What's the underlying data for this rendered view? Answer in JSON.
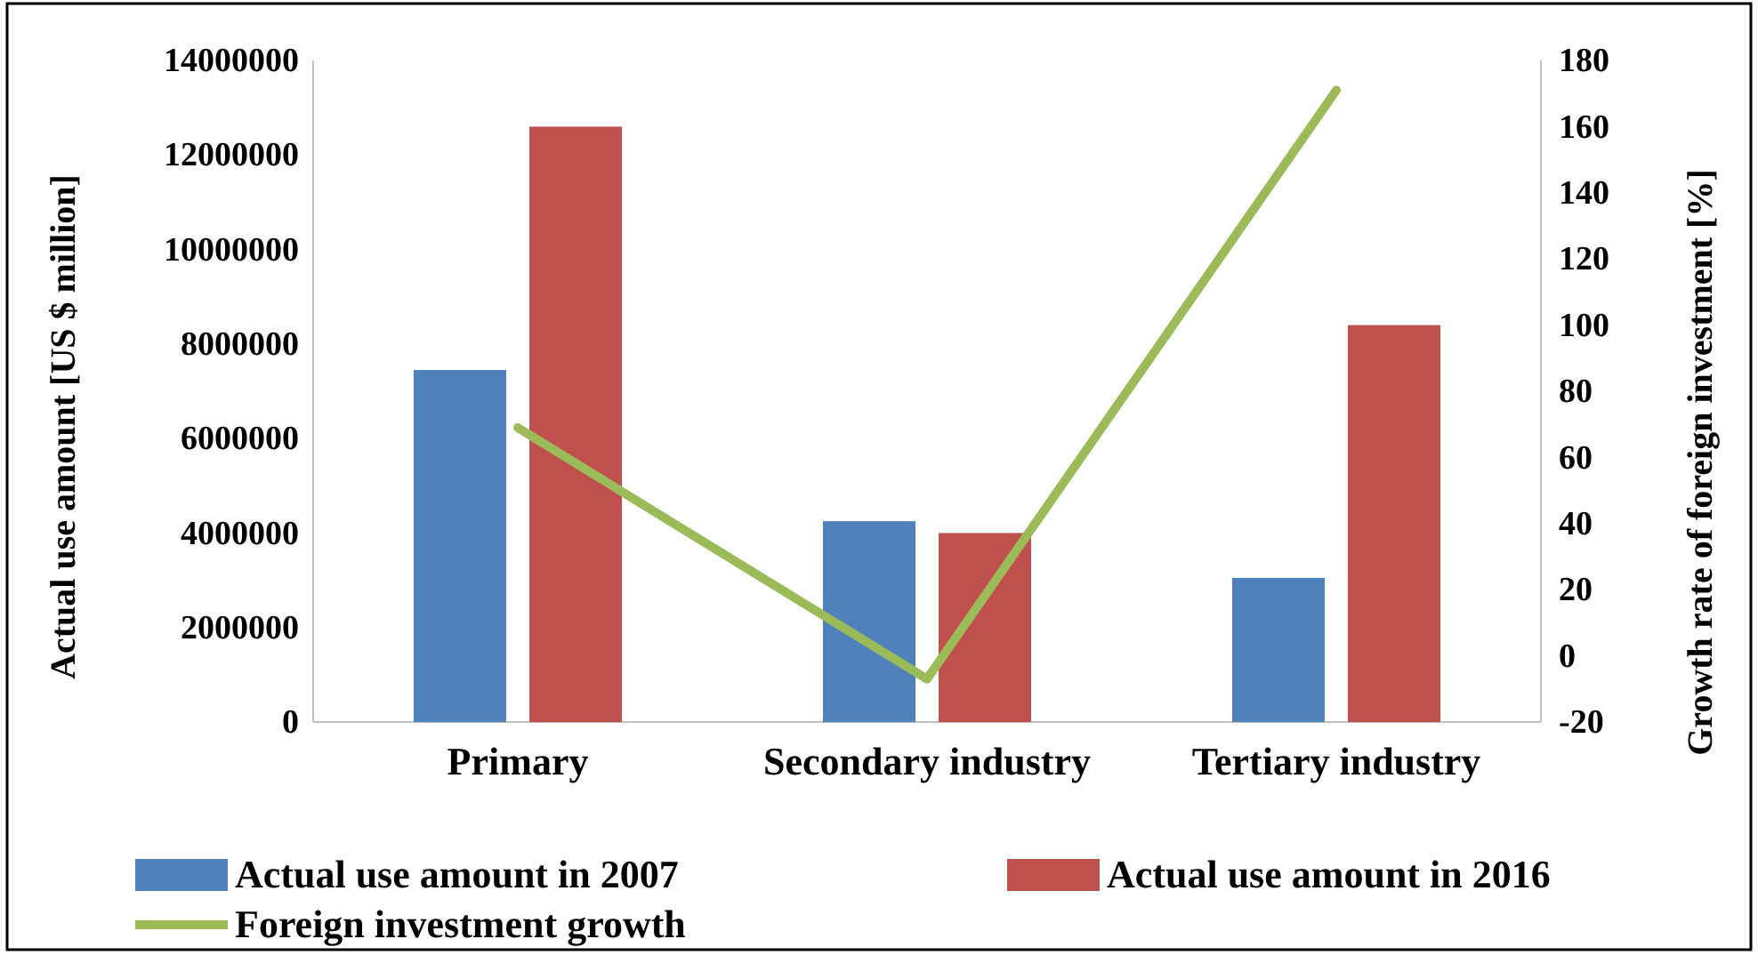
{
  "chart_data": {
    "type": "bar",
    "categories": [
      "Primary",
      "Secondary industry",
      "Tertiary industry"
    ],
    "ylabel": "Actual use amount [US $ million]",
    "y2label": "Growth rate of foreign investment [%]",
    "ylim": [
      0,
      14000000
    ],
    "yticks": [
      0,
      2000000,
      4000000,
      6000000,
      8000000,
      10000000,
      12000000,
      14000000
    ],
    "y2lim": [
      -20,
      180
    ],
    "y2ticks": [
      -20,
      0,
      20,
      40,
      60,
      80,
      100,
      120,
      140,
      160,
      180
    ],
    "grid": false,
    "legend": "bottom",
    "series": [
      {
        "name": "Actual use amount in 2007",
        "color": "#4f81bd",
        "values": [
          7450000,
          4250000,
          3050000
        ]
      },
      {
        "name": "Actual use amount in 2016",
        "color": "#c0504d",
        "values": [
          12600000,
          4000000,
          8400000
        ]
      },
      {
        "name": "Foreign investment growth",
        "type": "line",
        "axis": "y2",
        "color": "#9bbb59",
        "values": [
          69,
          -7,
          171
        ]
      }
    ]
  }
}
